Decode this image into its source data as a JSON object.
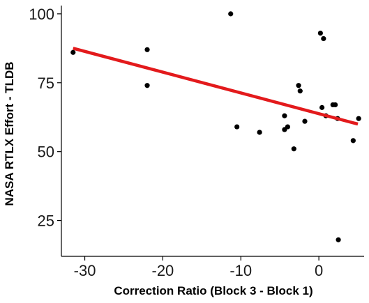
{
  "chart_data": {
    "type": "scatter",
    "title": "",
    "xlabel": "Correction Ratio (Block 3 - Block 1)",
    "ylabel": "NASA RTLX Effort  - TLDB",
    "xlim": [
      -33,
      5.8
    ],
    "ylim": [
      12,
      103
    ],
    "xticks": [
      -30,
      -20,
      -10,
      0
    ],
    "xtick_labels": [
      "-30",
      "-20",
      "-10",
      "0"
    ],
    "yticks": [
      25,
      50,
      75,
      100
    ],
    "ytick_labels": [
      "25",
      "50",
      "75",
      "100"
    ],
    "grid": false,
    "legend": "none",
    "points": [
      {
        "x": -31.5,
        "y": 86
      },
      {
        "x": -22.0,
        "y": 87
      },
      {
        "x": -22.0,
        "y": 74
      },
      {
        "x": -11.3,
        "y": 100
      },
      {
        "x": -10.5,
        "y": 59
      },
      {
        "x": -7.6,
        "y": 57
      },
      {
        "x": -4.4,
        "y": 63
      },
      {
        "x": -4.4,
        "y": 58
      },
      {
        "x": -4.0,
        "y": 59
      },
      {
        "x": -3.2,
        "y": 51
      },
      {
        "x": -2.6,
        "y": 74
      },
      {
        "x": -2.4,
        "y": 72
      },
      {
        "x": -1.8,
        "y": 61
      },
      {
        "x": 0.2,
        "y": 93
      },
      {
        "x": 0.6,
        "y": 91
      },
      {
        "x": 0.4,
        "y": 66
      },
      {
        "x": 0.9,
        "y": 63
      },
      {
        "x": 1.8,
        "y": 67
      },
      {
        "x": 2.1,
        "y": 67
      },
      {
        "x": 2.4,
        "y": 62
      },
      {
        "x": 4.4,
        "y": 54
      },
      {
        "x": 2.5,
        "y": 18
      },
      {
        "x": 5.1,
        "y": 62
      }
    ],
    "trend_line": {
      "x": [
        -31.5,
        5.0
      ],
      "y": [
        87.5,
        60.0
      ]
    },
    "colors": {
      "points": "#000000",
      "trend_line": "#e31a1c",
      "axis": "#000000"
    }
  }
}
